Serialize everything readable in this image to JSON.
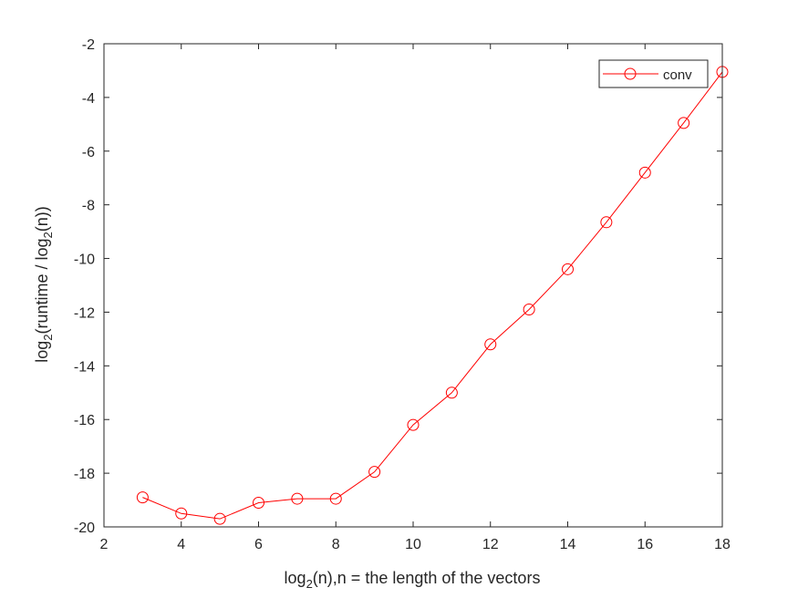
{
  "chart_data": {
    "type": "line",
    "xlabel": {
      "base": "log",
      "sub": "2",
      "rest": "(n),n = the length of the vectors"
    },
    "ylabel": {
      "part1": "log",
      "sub1": "2",
      "part2": "(runtime / log",
      "sub2": "2",
      "part3": "(n))"
    },
    "xlim": [
      2,
      18
    ],
    "ylim": [
      -20,
      -2
    ],
    "xticks": [
      2,
      4,
      6,
      8,
      10,
      12,
      14,
      16,
      18
    ],
    "yticks": [
      -20,
      -18,
      -16,
      -14,
      -12,
      -10,
      -8,
      -6,
      -4,
      -2
    ],
    "grid": false,
    "legend_position": "top-right",
    "series": [
      {
        "name": "conv",
        "color": "#ff0000",
        "marker": "circle",
        "x": [
          3,
          4,
          5,
          6,
          7,
          8,
          9,
          10,
          11,
          12,
          13,
          14,
          15,
          16,
          17,
          18
        ],
        "y": [
          -18.9,
          -19.5,
          -19.7,
          -19.1,
          -18.95,
          -18.95,
          -17.95,
          -16.2,
          -15.0,
          -13.2,
          -11.9,
          -10.4,
          -8.65,
          -6.8,
          -4.95,
          -3.05
        ]
      }
    ]
  }
}
